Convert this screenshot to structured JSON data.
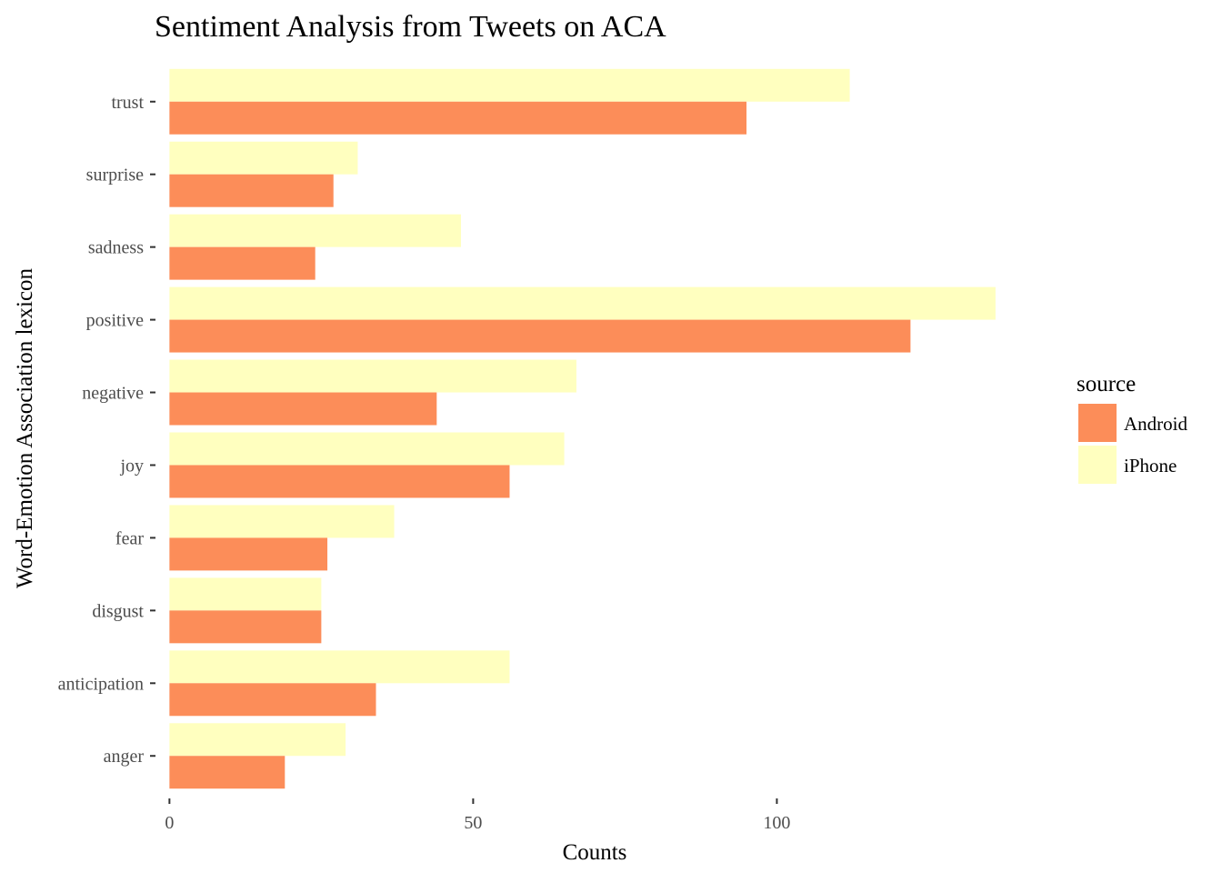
{
  "chart_data": {
    "type": "bar",
    "orientation": "horizontal",
    "title": "Sentiment Analysis from Tweets on ACA",
    "xlabel": "Counts",
    "ylabel": "Word-Emotion Association lexicon",
    "categories": [
      "anger",
      "anticipation",
      "disgust",
      "fear",
      "joy",
      "negative",
      "positive",
      "sadness",
      "surprise",
      "trust"
    ],
    "series": [
      {
        "name": "Android",
        "color": "#FC8D59",
        "values": [
          19,
          34,
          25,
          26,
          56,
          44,
          122,
          24,
          27,
          95
        ]
      },
      {
        "name": "iPhone",
        "color": "#FFFFBF",
        "values": [
          29,
          56,
          25,
          37,
          65,
          67,
          136,
          48,
          31,
          112
        ]
      }
    ],
    "xlim": [
      -2,
      142
    ],
    "xticks": [
      0,
      50,
      100
    ],
    "legend": {
      "title": "source",
      "position": "right"
    },
    "grid": false
  }
}
